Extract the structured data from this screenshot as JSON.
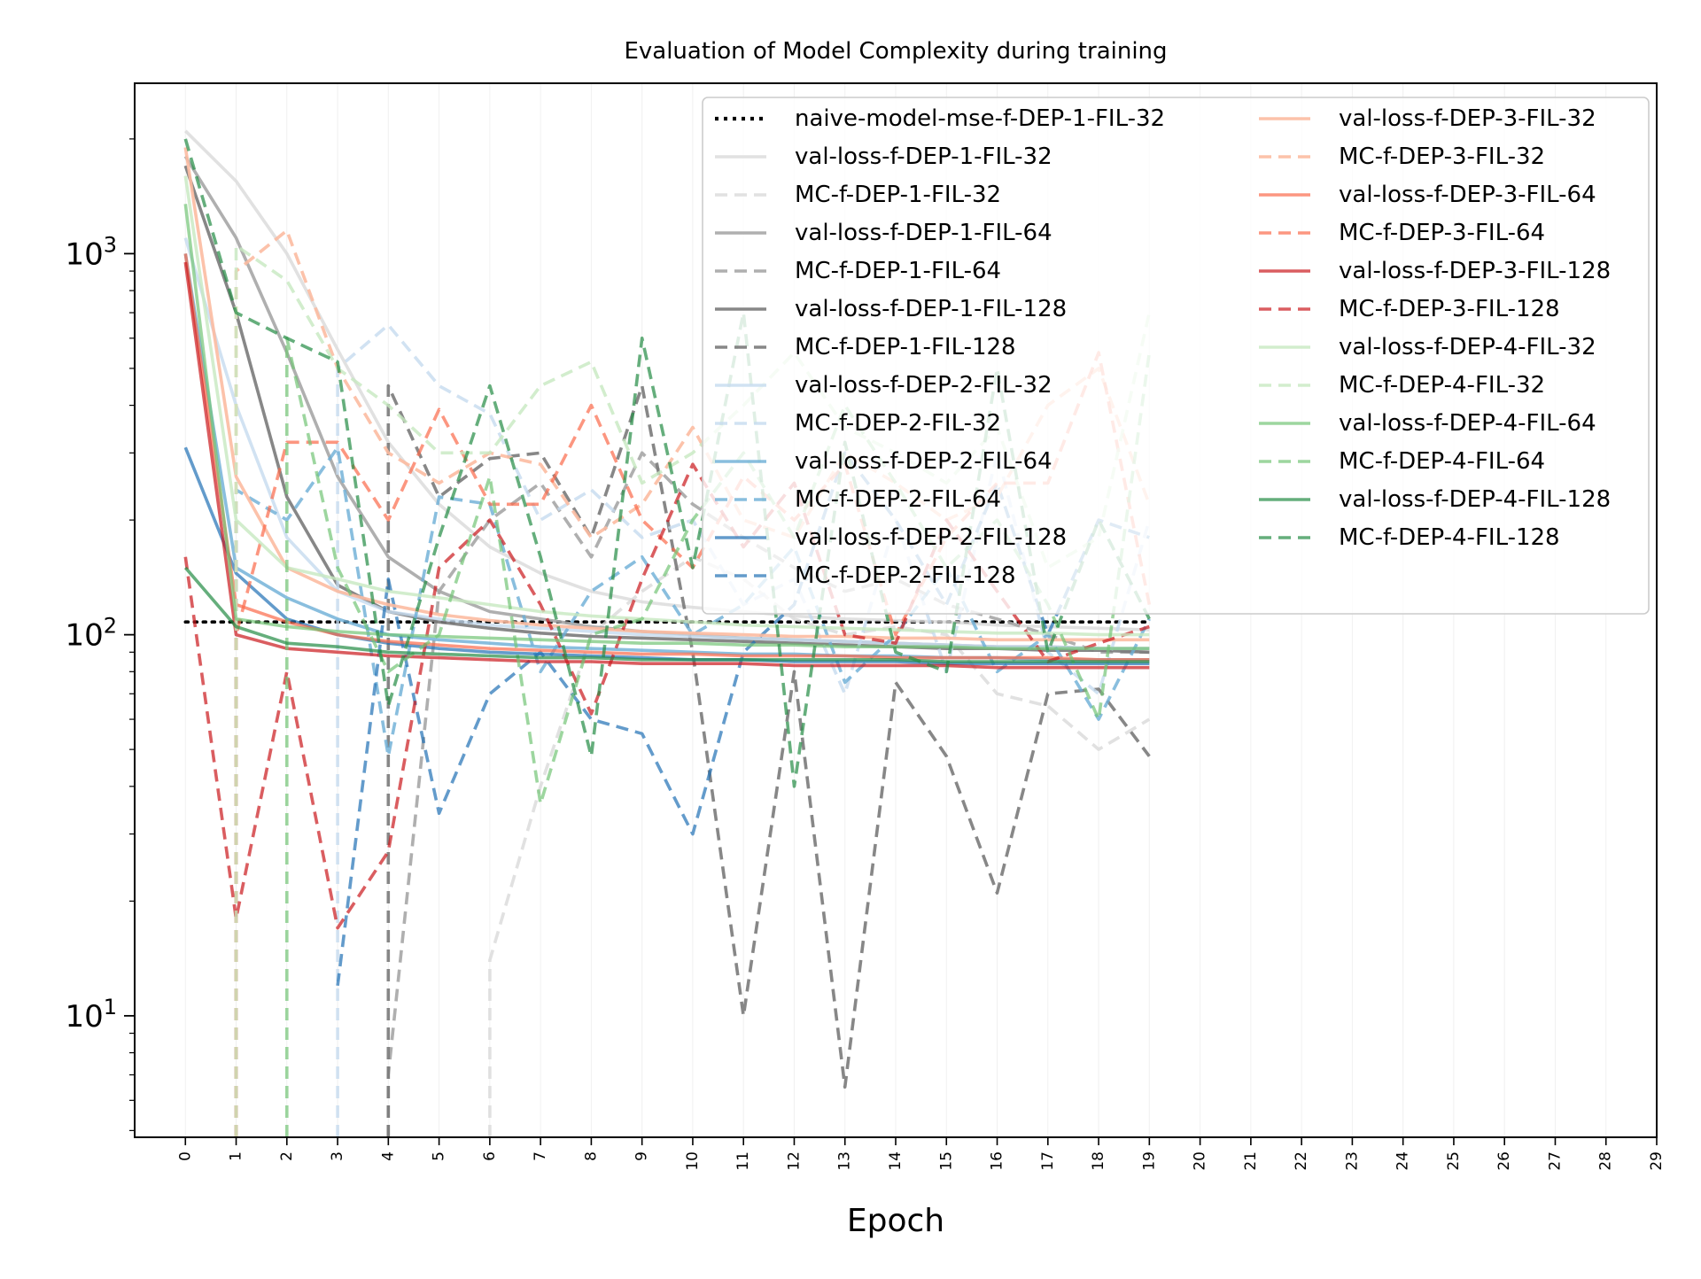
{
  "chart_data": {
    "type": "line",
    "title": "Evaluation of Model Complexity during training",
    "xlabel": "Epoch",
    "ylabel": "",
    "yscale": "log",
    "xlim": [
      -1,
      29
    ],
    "ylim": [
      4.8,
      2800
    ],
    "xticks": [
      0,
      1,
      2,
      3,
      4,
      5,
      6,
      7,
      8,
      9,
      10,
      11,
      12,
      13,
      14,
      15,
      16,
      17,
      18,
      19,
      20,
      21,
      22,
      23,
      24,
      25,
      26,
      27,
      28,
      29
    ],
    "yticks": [
      {
        "value": 10,
        "label_base": "10",
        "label_exp": "1"
      },
      {
        "value": 100,
        "label_base": "10",
        "label_exp": "2"
      },
      {
        "value": 1000,
        "label_base": "10",
        "label_exp": "3"
      }
    ],
    "grid": "vertical faint",
    "legend": {
      "placement": "top-right",
      "columns": 2
    },
    "series": [
      {
        "name": "naive-model-mse-f-DEP-1-FIL-32",
        "color": "#000000",
        "style": "dotted",
        "alpha": 1.0,
        "values": [
          108,
          108,
          108,
          108,
          108,
          108,
          108,
          108,
          108,
          108,
          108,
          108,
          108,
          108,
          108,
          108,
          108,
          108,
          108,
          108
        ]
      },
      {
        "name": "val-loss-f-DEP-1-FIL-32",
        "color": "#d9d9d9",
        "style": "solid",
        "alpha": 0.8,
        "values": [
          2100,
          1550,
          1000,
          560,
          320,
          220,
          170,
          145,
          130,
          122,
          118,
          115,
          112,
          110,
          109,
          108,
          106,
          105,
          104,
          103
        ]
      },
      {
        "name": "MC-f-DEP-1-FIL-32",
        "color": "#d9d9d9",
        "style": "dashed",
        "alpha": 0.8,
        "values": [
          null,
          null,
          null,
          null,
          null,
          null,
          14,
          40,
          100,
          130,
          160,
          140,
          110,
          100,
          105,
          100,
          70,
          65,
          50,
          60
        ]
      },
      {
        "name": "val-loss-f-DEP-1-FIL-64",
        "color": "#a6a6a6",
        "style": "solid",
        "alpha": 0.9,
        "values": [
          1800,
          1100,
          550,
          260,
          160,
          130,
          115,
          110,
          105,
          102,
          100,
          98,
          97,
          96,
          95,
          94,
          93,
          93,
          92,
          92
        ]
      },
      {
        "name": "MC-f-DEP-1-FIL-64",
        "color": "#a6a6a6",
        "style": "dashed",
        "alpha": 0.9,
        "values": [
          null,
          null,
          null,
          null,
          7,
          130,
          200,
          250,
          160,
          300,
          220,
          180,
          150,
          130,
          140,
          120,
          110,
          100,
          90,
          90
        ]
      },
      {
        "name": "val-loss-f-DEP-1-FIL-128",
        "color": "#7a7a7a",
        "style": "solid",
        "alpha": 0.9,
        "values": [
          1700,
          700,
          230,
          135,
          115,
          108,
          104,
          101,
          99,
          98,
          97,
          96,
          95,
          94,
          93,
          92,
          92,
          91,
          91,
          90
        ]
      },
      {
        "name": "MC-f-DEP-1-FIL-128",
        "color": "#7a7a7a",
        "style": "dashed",
        "alpha": 0.9,
        "values": [
          null,
          null,
          null,
          null,
          450,
          230,
          290,
          300,
          180,
          450,
          90,
          10,
          80,
          6.5,
          75,
          48,
          21,
          70,
          72,
          48
        ]
      },
      {
        "name": "val-loss-f-DEP-2-FIL-32",
        "color": "#c6dbef",
        "style": "solid",
        "alpha": 0.8,
        "values": [
          1100,
          400,
          180,
          130,
          115,
          110,
          106,
          104,
          102,
          100,
          99,
          98,
          97,
          96,
          95,
          94,
          93,
          93,
          92,
          92
        ]
      },
      {
        "name": "MC-f-DEP-2-FIL-32",
        "color": "#c6dbef",
        "style": "dashed",
        "alpha": 0.8,
        "values": [
          null,
          null,
          null,
          500,
          650,
          450,
          380,
          200,
          240,
          180,
          200,
          120,
          140,
          70,
          200,
          80,
          300,
          90,
          70,
          200
        ]
      },
      {
        "name": "val-loss-f-DEP-2-FIL-64",
        "color": "#6baed6",
        "style": "solid",
        "alpha": 0.8,
        "values": [
          1000,
          150,
          125,
          110,
          100,
          97,
          95,
          93,
          92,
          91,
          90,
          89,
          89,
          88,
          88,
          87,
          87,
          86,
          86,
          86
        ]
      },
      {
        "name": "MC-f-DEP-2-FIL-64",
        "color": "#6baed6",
        "style": "dashed",
        "alpha": 0.8,
        "values": [
          null,
          240,
          200,
          310,
          48,
          230,
          220,
          80,
          130,
          160,
          100,
          120,
          170,
          75,
          100,
          150,
          80,
          100,
          60,
          110
        ]
      },
      {
        "name": "val-loss-f-DEP-2-FIL-128",
        "color": "#2171b5",
        "style": "solid",
        "alpha": 0.7,
        "values": [
          310,
          145,
          110,
          100,
          95,
          92,
          90,
          89,
          88,
          87,
          86,
          86,
          85,
          85,
          85,
          84,
          84,
          84,
          84,
          84
        ]
      },
      {
        "name": "MC-f-DEP-2-FIL-128",
        "color": "#2171b5",
        "style": "dashed",
        "alpha": 0.7,
        "values": [
          null,
          210,
          null,
          12,
          140,
          34,
          70,
          90,
          60,
          55,
          30,
          90,
          120,
          300,
          200,
          120,
          250,
          100,
          200,
          180
        ]
      },
      {
        "name": "val-loss-f-DEP-3-FIL-32",
        "color": "#fcbba1",
        "style": "solid",
        "alpha": 0.9,
        "values": [
          1900,
          260,
          150,
          130,
          120,
          113,
          109,
          106,
          104,
          102,
          101,
          100,
          99,
          99,
          98,
          98,
          97,
          97,
          97,
          97
        ]
      },
      {
        "name": "MC-f-DEP-3-FIL-32",
        "color": "#fcbba1",
        "style": "dashed",
        "alpha": 0.9,
        "values": [
          null,
          900,
          1150,
          500,
          300,
          250,
          300,
          280,
          180,
          220,
          350,
          200,
          180,
          300,
          250,
          200,
          230,
          400,
          500,
          220
        ]
      },
      {
        "name": "val-loss-f-DEP-3-FIL-64",
        "color": "#fb6a4a",
        "style": "solid",
        "alpha": 0.7,
        "values": [
          1000,
          120,
          108,
          100,
          96,
          94,
          92,
          91,
          90,
          89,
          89,
          88,
          88,
          88,
          87,
          87,
          87,
          87,
          86,
          86
        ]
      },
      {
        "name": "MC-f-DEP-3-FIL-64",
        "color": "#fb6a4a",
        "style": "dashed",
        "alpha": 0.7,
        "values": [
          null,
          100,
          320,
          320,
          200,
          390,
          220,
          220,
          400,
          200,
          150,
          260,
          200,
          280,
          100,
          180,
          250,
          250,
          550,
          120
        ]
      },
      {
        "name": "val-loss-f-DEP-3-FIL-128",
        "color": "#cb181d",
        "style": "solid",
        "alpha": 0.7,
        "values": [
          950,
          100,
          92,
          90,
          88,
          87,
          86,
          85,
          85,
          84,
          84,
          84,
          83,
          83,
          83,
          83,
          82,
          82,
          82,
          82
        ]
      },
      {
        "name": "MC-f-DEP-3-FIL-128",
        "color": "#cb181d",
        "style": "dashed",
        "alpha": 0.7,
        "values": [
          160,
          18,
          80,
          17,
          27,
          150,
          200,
          120,
          62,
          140,
          280,
          170,
          250,
          100,
          95,
          200,
          130,
          85,
          95,
          105
        ]
      },
      {
        "name": "val-loss-f-DEP-4-FIL-32",
        "color": "#c7e9c0",
        "style": "solid",
        "alpha": 0.8,
        "values": [
          1600,
          200,
          150,
          140,
          130,
          125,
          120,
          115,
          112,
          110,
          108,
          106,
          105,
          104,
          103,
          102,
          101,
          101,
          100,
          100
        ]
      },
      {
        "name": "MC-f-DEP-4-FIL-32",
        "color": "#c7e9c0",
        "style": "dashed",
        "alpha": 0.8,
        "values": [
          null,
          1050,
          850,
          500,
          400,
          300,
          300,
          450,
          520,
          250,
          300,
          400,
          550,
          350,
          300,
          250,
          350,
          150,
          180,
          700
        ]
      },
      {
        "name": "val-loss-f-DEP-4-FIL-64",
        "color": "#74c476",
        "style": "solid",
        "alpha": 0.7,
        "values": [
          1350,
          110,
          105,
          102,
          100,
          99,
          98,
          97,
          96,
          95,
          95,
          94,
          94,
          93,
          93,
          93,
          92,
          92,
          92,
          92
        ]
      },
      {
        "name": "MC-f-DEP-4-FIL-64",
        "color": "#74c476",
        "style": "dashed",
        "alpha": 0.7,
        "values": [
          null,
          null,
          600,
          150,
          80,
          100,
          260,
          36,
          100,
          110,
          200,
          300,
          180,
          400,
          250,
          150,
          200,
          120,
          60,
          550
        ]
      },
      {
        "name": "val-loss-f-DEP-4-FIL-128",
        "color": "#238b45",
        "style": "solid",
        "alpha": 0.7,
        "values": [
          150,
          105,
          95,
          93,
          90,
          89,
          88,
          87,
          87,
          86,
          86,
          86,
          86,
          86,
          86,
          85,
          85,
          85,
          85,
          85
        ]
      },
      {
        "name": "MC-f-DEP-4-FIL-128",
        "color": "#238b45",
        "style": "dashed",
        "alpha": 0.7,
        "values": [
          2000,
          700,
          600,
          520,
          65,
          180,
          450,
          160,
          48,
          600,
          150,
          700,
          40,
          320,
          90,
          80,
          500,
          90,
          200,
          110
        ]
      }
    ]
  }
}
